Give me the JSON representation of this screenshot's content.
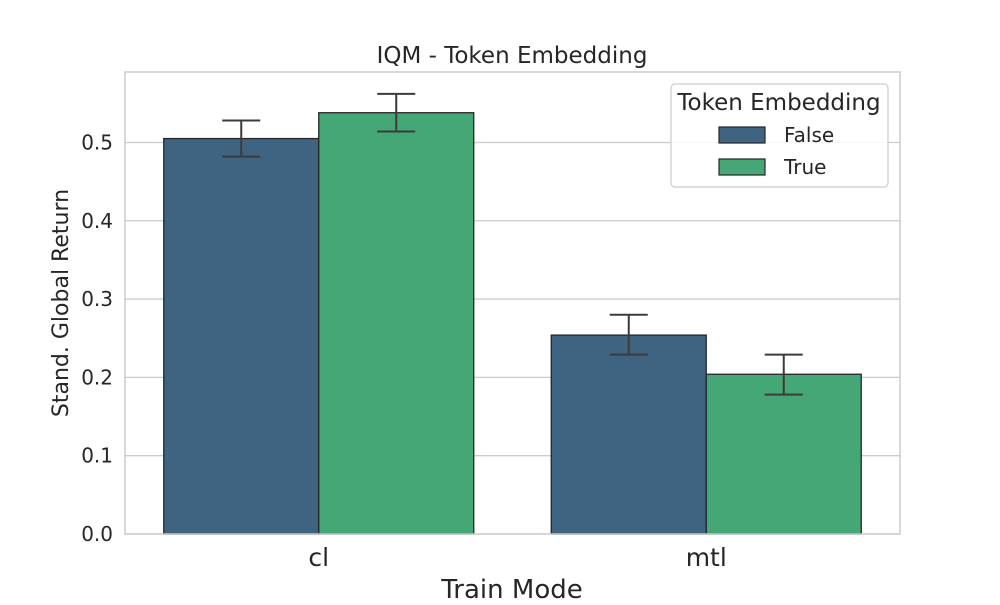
{
  "chart_data": {
    "type": "bar",
    "title": "IQM - Token Embedding",
    "xlabel": "Train Mode",
    "ylabel": "Stand. Global Return",
    "categories": [
      "cl",
      "mtl"
    ],
    "series": [
      {
        "name": "False",
        "color": "#3e6482",
        "values": [
          0.505,
          0.254
        ],
        "err_low": [
          0.482,
          0.229
        ],
        "err_high": [
          0.528,
          0.28
        ]
      },
      {
        "name": "True",
        "color": "#46a776",
        "values": [
          0.538,
          0.204
        ],
        "err_low": [
          0.514,
          0.178
        ],
        "err_high": [
          0.562,
          0.229
        ]
      }
    ],
    "ylim": [
      0.0,
      0.59
    ],
    "yticks": [
      0.0,
      0.1,
      0.2,
      0.3,
      0.4,
      0.5
    ],
    "ytick_labels": [
      "0.0",
      "0.1",
      "0.2",
      "0.3",
      "0.4",
      "0.5"
    ],
    "grid": "horizontal",
    "legend": {
      "title": "Token Embedding",
      "position": "top-right"
    }
  }
}
